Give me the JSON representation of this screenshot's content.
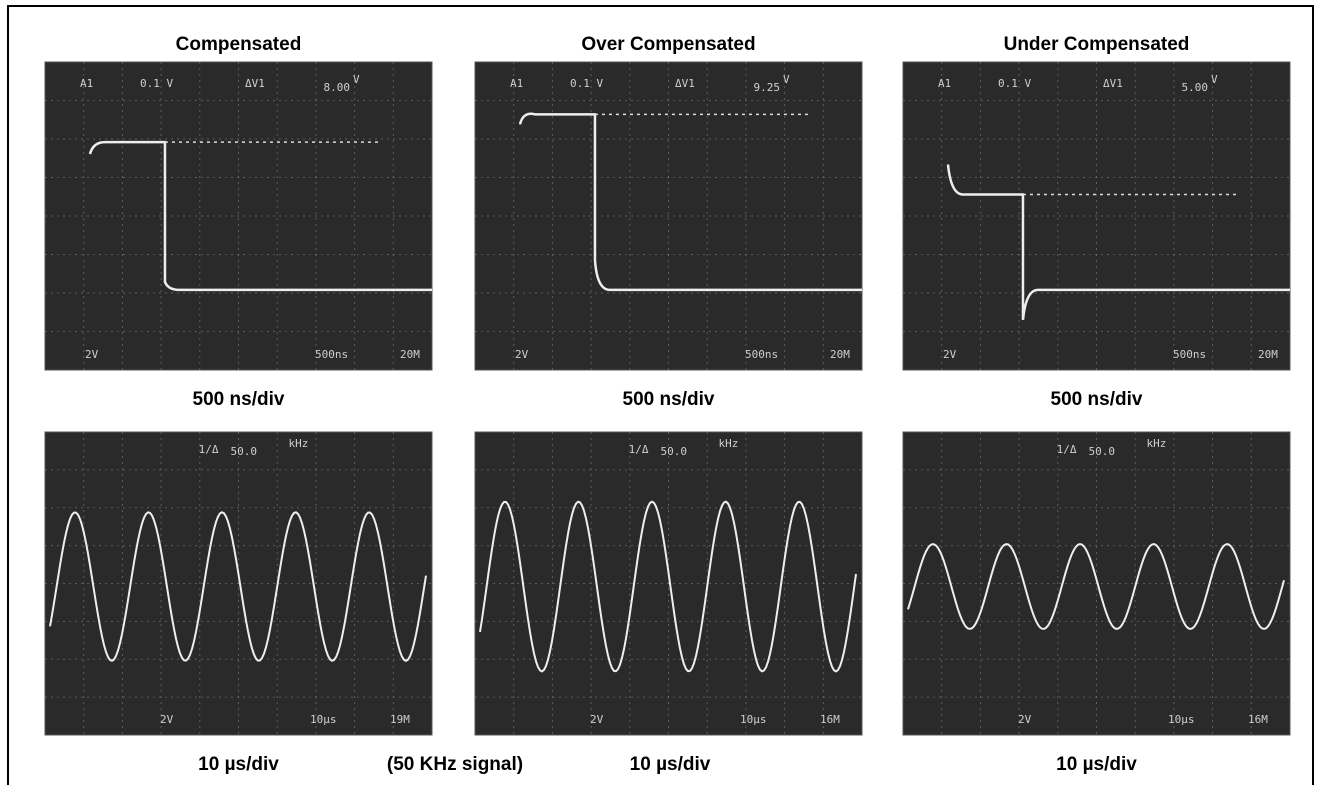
{
  "columns": [
    {
      "title": "Compensated",
      "square": {
        "readouts": [
          "A1",
          "0.1 V",
          "ΔV1"
        ],
        "value": "8.00",
        "unit": "V",
        "bottom": [
          "2V",
          "500ns",
          "20M"
        ],
        "caption": "500 ns/div"
      },
      "sine": {
        "header": "1/Δ",
        "value": "50.0",
        "unit": "kHz",
        "bottom": [
          "2V",
          "10µs",
          "19M"
        ],
        "caption": "10 µs/div"
      }
    },
    {
      "title": "Over Compensated",
      "square": {
        "readouts": [
          "A1",
          "0.1 V",
          "ΔV1"
        ],
        "value": "9.25",
        "unit": "V",
        "bottom": [
          "2V",
          "500ns",
          "20M"
        ],
        "caption": "500 ns/div"
      },
      "sine": {
        "header": "1/Δ",
        "value": "50.0",
        "unit": "kHz",
        "bottom": [
          "2V",
          "10µs",
          "16M"
        ],
        "caption": "10 µs/div"
      }
    },
    {
      "title": "Under Compensated",
      "square": {
        "readouts": [
          "A1",
          "0.1 V",
          "ΔV1"
        ],
        "value": "5.00",
        "unit": "V",
        "bottom": [
          "2V",
          "500ns",
          "20M"
        ],
        "caption": "500 ns/div"
      },
      "sine": {
        "header": "1/Δ",
        "value": "50.0",
        "unit": "kHz",
        "bottom": [
          "2V",
          "10µs",
          "16M"
        ],
        "caption": "10 µs/div"
      }
    }
  ],
  "note": "(50 KHz signal)"
}
